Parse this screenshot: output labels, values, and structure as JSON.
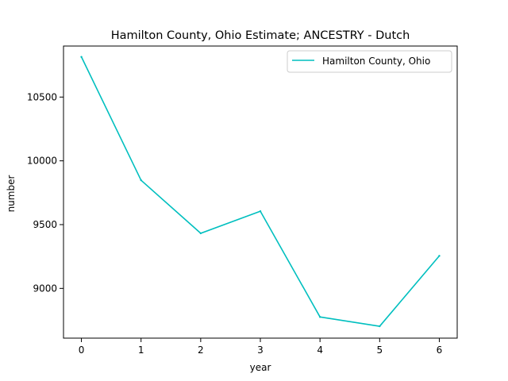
{
  "chart_data": {
    "type": "line",
    "title": "Hamilton County, Ohio Estimate; ANCESTRY - Dutch",
    "xlabel": "year",
    "ylabel": "number",
    "x": [
      0,
      1,
      2,
      3,
      4,
      5,
      6
    ],
    "xticks": [
      "0",
      "1",
      "2",
      "3",
      "4",
      "5",
      "6"
    ],
    "yticks": [
      9000,
      9500,
      10000,
      10500
    ],
    "ytick_labels": [
      "9000",
      "9500",
      "10000",
      "10500"
    ],
    "xlim": [
      -0.3,
      6.3
    ],
    "ylim": [
      8610,
      10900
    ],
    "grid": false,
    "legend": "upper right",
    "series": [
      {
        "name": "Hamilton County, Ohio",
        "color": "#00bfbf",
        "values": [
          10815,
          9848,
          9432,
          9605,
          8776,
          8703,
          9255
        ]
      }
    ]
  }
}
